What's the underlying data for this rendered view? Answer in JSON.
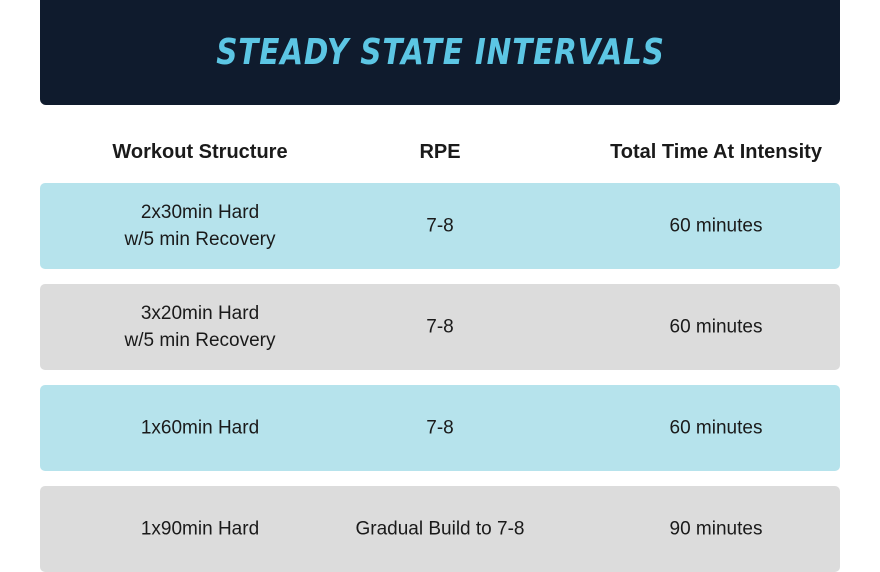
{
  "header": {
    "title": "STEADY STATE INTERVALS"
  },
  "table": {
    "columns": [
      "Workout Structure",
      "RPE",
      "Total Time At Intensity"
    ],
    "rows": [
      [
        "2x30min Hard\nw/5 min Recovery",
        "7-8",
        "60 minutes"
      ],
      [
        "3x20min Hard\nw/5 min Recovery",
        "7-8",
        "60 minutes"
      ],
      [
        "1x60min Hard",
        "7-8",
        "60 minutes"
      ],
      [
        "1x90min Hard",
        "Gradual Build to 7-8",
        "90 minutes"
      ]
    ]
  }
}
